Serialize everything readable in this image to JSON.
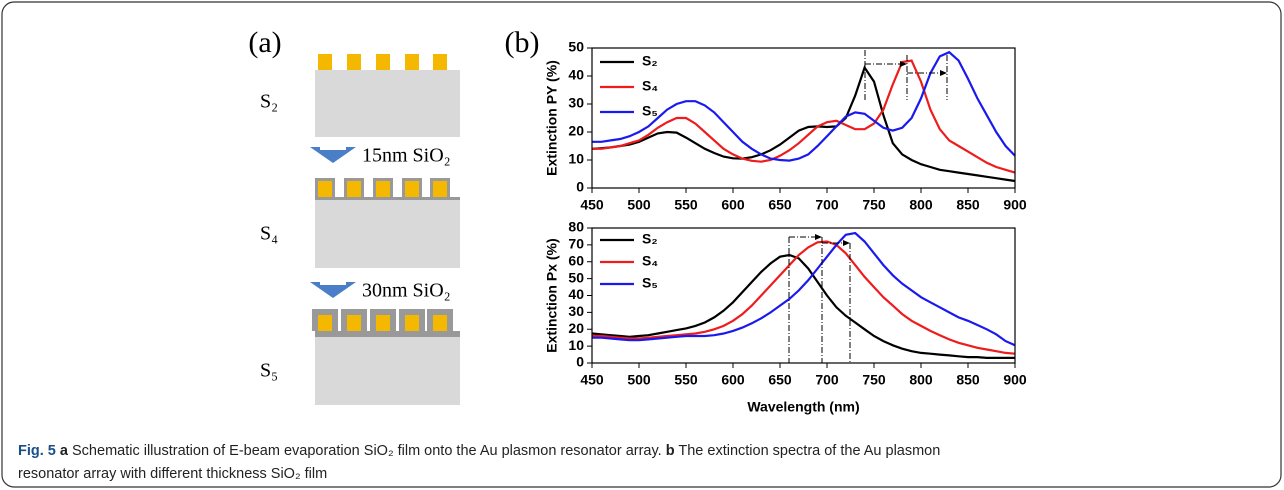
{
  "figure": {
    "panel_a": {
      "label": "(a)",
      "stages": [
        "S₂",
        "S₄",
        "S₅"
      ],
      "steps": [
        "15nm SiO₂",
        "30nm SiO₂"
      ]
    },
    "panel_b": {
      "label": "(b)"
    },
    "caption": {
      "fig": "Fig. 5",
      "a": "a",
      "text_a": "Schematic illustration of E-beam evaporation SiO₂ film onto the Au plasmon resonator array.",
      "b": "b",
      "text_b1": "The extinction spectra of the Au plasmon",
      "text_b2": "resonator array with different thickness SiO₂ film"
    }
  },
  "chart_data": [
    {
      "type": "line",
      "ylabel": "Extinction PY (%)",
      "x": [
        450,
        460,
        470,
        480,
        490,
        500,
        510,
        520,
        530,
        540,
        550,
        560,
        570,
        580,
        590,
        600,
        610,
        620,
        630,
        640,
        650,
        660,
        670,
        680,
        690,
        700,
        710,
        720,
        730,
        740,
        750,
        760,
        770,
        780,
        790,
        800,
        810,
        820,
        830,
        840,
        850,
        860,
        870,
        880,
        890,
        900
      ],
      "series": [
        {
          "name": "S₂",
          "color": "#000000",
          "values": [
            14,
            14.2,
            14.5,
            15,
            15.5,
            16.5,
            18,
            19.5,
            20,
            19.8,
            18,
            16,
            14,
            12.5,
            11.2,
            10.6,
            10.5,
            11,
            12,
            13.5,
            15.5,
            18,
            20.5,
            21.8,
            22,
            21.8,
            22,
            25,
            33,
            43,
            38,
            26,
            16,
            12,
            10,
            8.5,
            7.5,
            6.5,
            6,
            5.5,
            5,
            4.5,
            4,
            3.5,
            3,
            2.5
          ]
        },
        {
          "name": "S₄",
          "color": "#ee1c1c",
          "values": [
            14,
            14,
            14.5,
            15,
            16,
            17,
            19,
            21.5,
            23.5,
            25,
            25,
            23,
            20,
            17,
            14,
            12,
            10.5,
            9.7,
            9.4,
            10,
            11.5,
            13.5,
            16,
            19,
            22,
            23.5,
            24,
            22.5,
            21,
            21,
            23,
            28,
            37,
            45,
            45.5,
            38,
            28,
            21,
            17,
            15,
            13,
            11,
            9,
            7.5,
            6.5,
            5.5
          ]
        },
        {
          "name": "S₅",
          "color": "#1a1aee",
          "values": [
            16.5,
            16.5,
            17,
            17.5,
            18.5,
            20,
            22,
            25,
            28,
            30,
            31,
            31,
            29.5,
            27,
            23.5,
            20,
            16.5,
            14,
            12,
            10.5,
            10,
            9.8,
            10.5,
            12,
            15,
            18.5,
            22,
            25.5,
            27,
            26.5,
            24,
            21.5,
            20.5,
            21.5,
            25,
            32,
            41,
            47,
            48.5,
            45.5,
            39,
            32,
            26,
            20,
            15,
            11.5
          ]
        }
      ],
      "xlim": [
        450,
        900
      ],
      "xticks": [
        450,
        500,
        550,
        600,
        650,
        700,
        750,
        800,
        850,
        900
      ],
      "ylim": [
        0,
        50
      ],
      "yticks": [
        0,
        10,
        20,
        30,
        40,
        50
      ]
    },
    {
      "type": "line",
      "ylabel": "Extinction Px (%)",
      "xlabel": "Wavelength (nm)",
      "x": [
        450,
        460,
        470,
        480,
        490,
        500,
        510,
        520,
        530,
        540,
        550,
        560,
        570,
        580,
        590,
        600,
        610,
        620,
        630,
        640,
        650,
        660,
        670,
        680,
        690,
        700,
        710,
        720,
        730,
        740,
        750,
        760,
        770,
        780,
        790,
        800,
        810,
        820,
        830,
        840,
        850,
        860,
        870,
        880,
        890,
        900
      ],
      "series": [
        {
          "name": "S₂",
          "color": "#000000",
          "values": [
            17.5,
            17,
            16.5,
            16,
            15.5,
            16,
            16.5,
            17.5,
            18.5,
            19.5,
            20.5,
            22,
            24,
            27,
            31,
            36,
            42,
            48,
            54,
            59,
            63,
            64,
            62,
            56,
            48,
            40,
            33,
            28,
            24,
            20,
            16,
            13,
            10.5,
            8.5,
            7,
            6,
            5.5,
            5,
            4.5,
            4,
            3.5,
            3.5,
            3,
            3,
            3,
            3
          ]
        },
        {
          "name": "S₄",
          "color": "#ee1c1c",
          "values": [
            16,
            16,
            15.5,
            15,
            14.5,
            14.5,
            15,
            15.5,
            16,
            16.5,
            17,
            17.5,
            18.5,
            20,
            22,
            25,
            29,
            34,
            40,
            46,
            52,
            58,
            64,
            68.5,
            71.5,
            72,
            70,
            65,
            58,
            51,
            45,
            39,
            34,
            29,
            25,
            22,
            19,
            16.5,
            14,
            12,
            10.5,
            9,
            8,
            7,
            6,
            5.5
          ]
        },
        {
          "name": "S₅",
          "color": "#1a1aee",
          "values": [
            15,
            15,
            14.5,
            14,
            13.5,
            13.5,
            14,
            14.5,
            15,
            15.5,
            16,
            16,
            16,
            16.5,
            17.5,
            19,
            21,
            23.5,
            26.5,
            30,
            34,
            38,
            43,
            49,
            56,
            63,
            70,
            76,
            77,
            72,
            65,
            58,
            52,
            47,
            43,
            39,
            36,
            33,
            30,
            27,
            25,
            22.5,
            20,
            17,
            13,
            10.5
          ]
        }
      ],
      "xlim": [
        450,
        900
      ],
      "xticks": [
        450,
        500,
        550,
        600,
        650,
        700,
        750,
        800,
        850,
        900
      ],
      "ylim": [
        0,
        80
      ],
      "yticks": [
        0,
        10,
        20,
        30,
        40,
        50,
        60,
        70,
        80
      ]
    }
  ]
}
